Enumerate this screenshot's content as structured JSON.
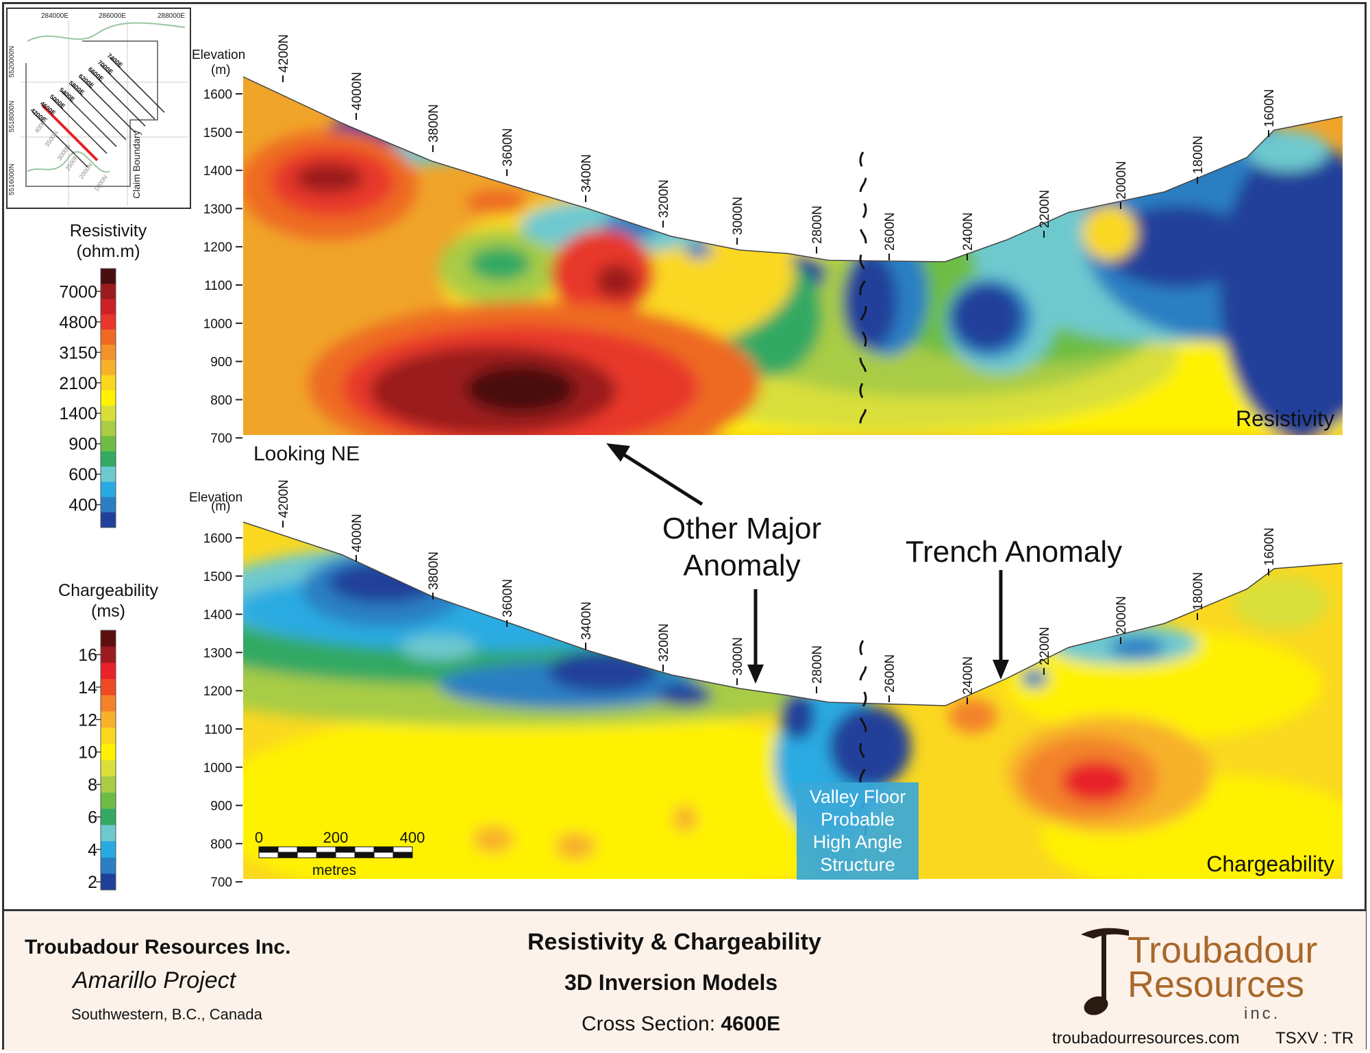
{
  "locator_map": {
    "easting_labels": [
      "284000E",
      "286000E",
      "288000E"
    ],
    "northing_labels": [
      "5520000N",
      "5518000N",
      "5516000N"
    ],
    "line_labels": [
      "7400E",
      "7000E",
      "6600E",
      "6200E",
      "5800E",
      "5400E",
      "5000E",
      "4600E",
      "4200E"
    ],
    "station_labels": [
      "4000N",
      "3500N",
      "3000N",
      "2500N",
      "2000N",
      "1000N"
    ],
    "claim_label": "Claim Boundary"
  },
  "resistivity_legend": {
    "title_line1": "Resistivity",
    "title_line2": "(ohm.m)",
    "labels": [
      "7000",
      "4800",
      "3150",
      "2100",
      "1400",
      "900",
      "600",
      "400"
    ],
    "colors": [
      "#4a0d0f",
      "#9b1b1f",
      "#cc2127",
      "#e8372b",
      "#ee6a24",
      "#f3922a",
      "#f7b12b",
      "#fad820",
      "#fff200",
      "#d9df3a",
      "#a8cc45",
      "#6dbd45",
      "#33a964",
      "#6ec9cf",
      "#29abe2",
      "#2b7fc3",
      "#21409a"
    ]
  },
  "chargeability_legend": {
    "title_line1": "Chargeability",
    "title_line2": "(ms)",
    "labels": [
      "16",
      "14",
      "12",
      "10",
      "8",
      "6",
      "4",
      "2"
    ],
    "colors": [
      "#5c0f0f",
      "#9b1b1f",
      "#e8222b",
      "#ee4a24",
      "#f3822a",
      "#f7b12b",
      "#fad820",
      "#fff200",
      "#d9df3a",
      "#a8cc45",
      "#6dbd45",
      "#33a964",
      "#6ec9cf",
      "#29abe2",
      "#2b7fc3",
      "#21409a"
    ]
  },
  "sections": {
    "elevation_label_line1": "Elevation",
    "elevation_label_line2": "(m)",
    "elevation_ticks": [
      "1600",
      "1500",
      "1400",
      "1300",
      "1200",
      "1100",
      "1000",
      "900",
      "800",
      "700"
    ],
    "stations": [
      "4200N",
      "4000N",
      "3800N",
      "3600N",
      "3400N",
      "3200N",
      "3000N",
      "2800N",
      "2600N",
      "2400N",
      "2200N",
      "2000N",
      "1800N",
      "1600N"
    ],
    "resistivity_label": "Resistivity",
    "chargeability_label": "Chargeability",
    "looking_label": "Looking NE"
  },
  "annotations": {
    "other_major_line1": "Other Major",
    "other_major_line2": "Anomaly",
    "trench_anomaly": "Trench Anomaly",
    "valley_box": [
      "Valley Floor",
      "Probable",
      "High Angle",
      "Structure"
    ]
  },
  "scale_bar": {
    "labels": [
      "0",
      "200",
      "400"
    ],
    "unit": "metres"
  },
  "footer": {
    "company": "Troubadour Resources Inc.",
    "project": "Amarillo Project",
    "location": "Southwestern, B.C., Canada",
    "title_line1": "Resistivity & Chargeability",
    "title_line2": "3D Inversion Models",
    "cross_section_prefix": "Cross Section: ",
    "cross_section_value": "4600E",
    "logo_line1": "Troubadour",
    "logo_line2": "Resources",
    "logo_line3": "inc.",
    "website": "troubadourresources.com",
    "ticker": "TSXV : TR"
  }
}
